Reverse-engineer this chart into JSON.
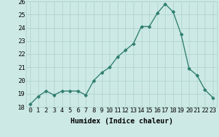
{
  "x": [
    0,
    1,
    2,
    3,
    4,
    5,
    6,
    7,
    8,
    9,
    10,
    11,
    12,
    13,
    14,
    15,
    16,
    17,
    18,
    19,
    20,
    21,
    22,
    23
  ],
  "y": [
    18.2,
    18.8,
    19.2,
    18.9,
    19.2,
    19.2,
    19.2,
    18.9,
    20.0,
    20.6,
    21.0,
    21.8,
    22.3,
    22.8,
    24.1,
    24.1,
    25.1,
    25.8,
    25.2,
    23.5,
    20.9,
    20.4,
    19.3,
    18.7
  ],
  "line_color": "#2e7d6e",
  "marker": "D",
  "marker_size": 2.5,
  "bg_color": "#cce9e5",
  "grid_color": "#aacfca",
  "xlabel": "Humidex (Indice chaleur)",
  "ylim": [
    18,
    26
  ],
  "xlim": [
    -0.5,
    23.5
  ],
  "yticks": [
    18,
    19,
    20,
    21,
    22,
    23,
    24,
    25,
    26
  ],
  "xticks": [
    0,
    1,
    2,
    3,
    4,
    5,
    6,
    7,
    8,
    9,
    10,
    11,
    12,
    13,
    14,
    15,
    16,
    17,
    18,
    19,
    20,
    21,
    22,
    23
  ],
  "line_width": 1.0,
  "xlabel_fontsize": 7.5,
  "tick_fontsize": 6.5
}
